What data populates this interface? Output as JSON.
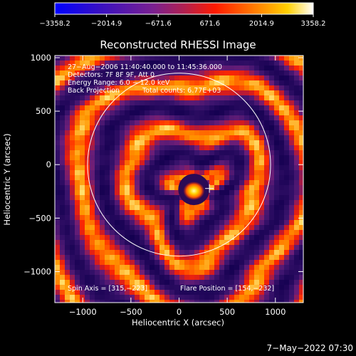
{
  "chart_data": {
    "type": "heatmap",
    "title": "Reconstructed RHESSI Image",
    "xlabel": "Heliocentric X (arcsec)",
    "ylabel": "Heliocentric Y (arcsec)",
    "xlim": [
      -1290,
      1290
    ],
    "ylim": [
      -1290,
      1020
    ],
    "xticks": [
      -1000,
      -500,
      0,
      500,
      1000
    ],
    "yticks": [
      -1000,
      -500,
      0,
      500,
      1000
    ],
    "xtick_labels": [
      "−1000",
      "−500",
      "0",
      "500",
      "1000"
    ],
    "ytick_labels": [
      "−1000",
      "−500",
      "0",
      "500",
      "1000"
    ],
    "colorbar": {
      "min": -3358.2,
      "max": 3358.2,
      "tick_values": [
        -3358.2,
        -2014.9,
        -671.6,
        671.6,
        2014.9,
        3358.2
      ],
      "tick_labels": [
        "−3358.2",
        "−2014.9",
        "−671.6",
        "671.6",
        "2014.9",
        "3358.2"
      ],
      "colormap": "blue-purple-red-yellow-white"
    },
    "annotations": [
      "27−Aug−2006 11:40:40.000 to 11:45:36.000",
      "Detectors: 7F 8F 9F, Att 0",
      "Energy Range: 6.0 − 12.0 keV",
      "Back Projection",
      "Total counts: 6.77E+03"
    ],
    "spin_axis_label": "Spin Axis = [315,−223]",
    "flare_position_label": "Flare Position = [154,−232]",
    "spin_axis": [
      315,
      -223
    ],
    "flare_position": [
      154,
      -232
    ],
    "solar_disk_radius": 950,
    "timestamp": "7−May−2022 07:30",
    "colors": {
      "background": "#000000",
      "foreground": "#ffffff",
      "low": "#0000ff",
      "mid_low": "#5a1a88",
      "mid_high": "#ff2000",
      "high": "#ffffff"
    }
  }
}
